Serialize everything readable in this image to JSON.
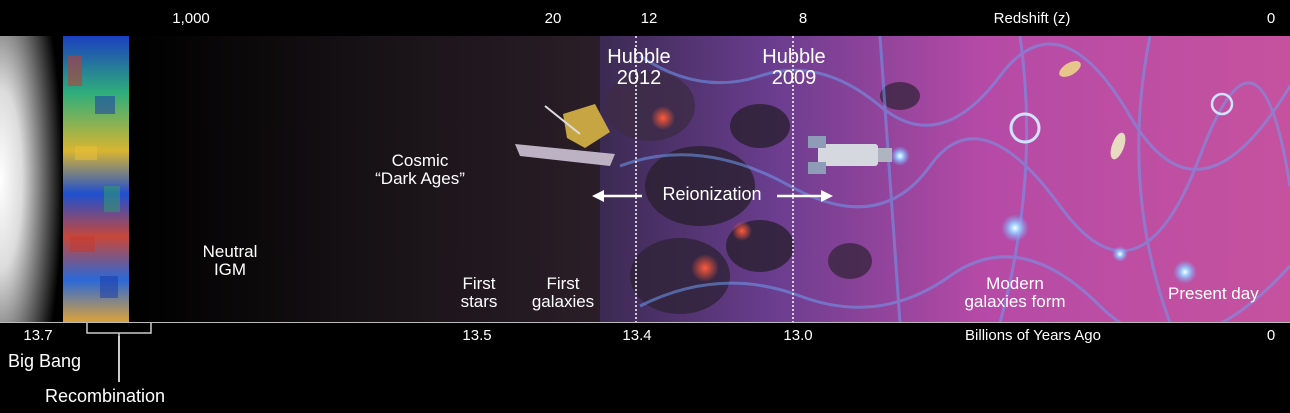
{
  "redshift_axis": {
    "title": "Redshift (z)",
    "ticks": [
      "1,000",
      "20",
      "12",
      "8",
      "0"
    ]
  },
  "time_axis": {
    "title": "Billions of Years Ago",
    "ticks": [
      "13.7",
      "13.5",
      "13.4",
      "13.0",
      "0"
    ]
  },
  "milestones": {
    "hubble_2012": {
      "line1": "Hubble",
      "line2": "2012"
    },
    "hubble_2009": {
      "line1": "Hubble",
      "line2": "2009"
    }
  },
  "eras": {
    "dark_ages": {
      "line1": "Cosmic",
      "line2": "“Dark Ages”"
    },
    "neutral_igm": {
      "line1": "Neutral",
      "line2": "IGM"
    },
    "first_stars": {
      "line1": "First",
      "line2": "stars"
    },
    "first_galaxies": {
      "line1": "First",
      "line2": "galaxies"
    },
    "modern_galaxies": {
      "line1": "Modern",
      "line2": "galaxies form"
    },
    "present_day": "Present day"
  },
  "reionization": "Reionization",
  "annotations": {
    "big_bang": "Big Bang",
    "recombination": "Recombination"
  },
  "colors": {
    "background": "#000000",
    "reionized_region": "#c0449a",
    "ionized_bubbles": "#5b7fd6",
    "text": "#ffffff"
  }
}
